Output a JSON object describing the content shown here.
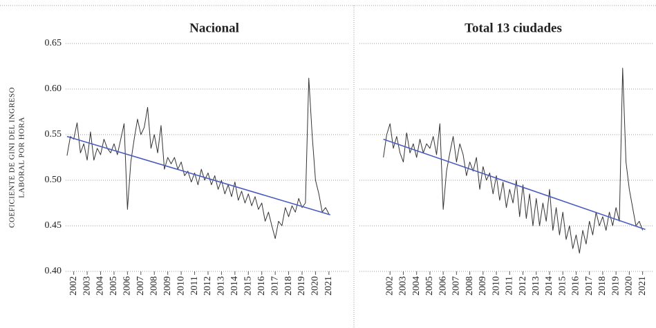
{
  "chart_data": [
    {
      "type": "line",
      "title": "Nacional",
      "ylabel": [
        "COEFICIENTE DE GINI DEL INGRESO",
        "LABORAL POR HORA"
      ],
      "xlim": [
        2001.4,
        2022.5
      ],
      "xticks": [
        2002,
        2003,
        2004,
        2005,
        2006,
        2007,
        2008,
        2009,
        2010,
        2011,
        2012,
        2013,
        2014,
        2015,
        2016,
        2017,
        2018,
        2019,
        2020,
        2021
      ],
      "ylim": [
        0.4,
        0.65
      ],
      "yticks": [
        {
          "value": 0.4,
          "label": "0.40"
        },
        0.45,
        {
          "value": 0.5,
          "label": "0.50"
        },
        0.55,
        {
          "value": 0.6,
          "label": "0.60"
        },
        0.65
      ],
      "grid": true,
      "color": "#333333",
      "x": [
        2001.5,
        2001.75,
        2002,
        2002.25,
        2002.5,
        2002.75,
        2003,
        2003.25,
        2003.5,
        2003.75,
        2004,
        2004.25,
        2004.5,
        2004.75,
        2005,
        2005.25,
        2005.5,
        2005.75,
        2006,
        2006.25,
        2006.5,
        2006.75,
        2007,
        2007.25,
        2007.5,
        2007.75,
        2008,
        2008.25,
        2008.5,
        2008.75,
        2009,
        2009.25,
        2009.5,
        2009.75,
        2010,
        2010.25,
        2010.5,
        2010.75,
        2011,
        2011.25,
        2011.5,
        2011.75,
        2012,
        2012.25,
        2012.5,
        2012.75,
        2013,
        2013.25,
        2013.5,
        2013.75,
        2014,
        2014.25,
        2014.5,
        2014.75,
        2015,
        2015.25,
        2015.5,
        2015.75,
        2016,
        2016.25,
        2016.5,
        2016.75,
        2017,
        2017.25,
        2017.5,
        2017.75,
        2018,
        2018.25,
        2018.5,
        2018.75,
        2019,
        2019.25,
        2019.5,
        2019.75,
        2020,
        2020.25,
        2020.5,
        2020.75,
        2021
      ],
      "values": [
        0.527,
        0.548,
        0.545,
        0.563,
        0.53,
        0.54,
        0.522,
        0.553,
        0.522,
        0.535,
        0.528,
        0.545,
        0.535,
        0.53,
        0.54,
        0.528,
        0.545,
        0.562,
        0.468,
        0.52,
        0.545,
        0.567,
        0.55,
        0.558,
        0.58,
        0.535,
        0.55,
        0.53,
        0.56,
        0.512,
        0.525,
        0.518,
        0.525,
        0.512,
        0.52,
        0.505,
        0.51,
        0.498,
        0.508,
        0.495,
        0.512,
        0.5,
        0.508,
        0.495,
        0.505,
        0.49,
        0.5,
        0.485,
        0.495,
        0.482,
        0.498,
        0.478,
        0.488,
        0.475,
        0.485,
        0.472,
        0.482,
        0.468,
        0.475,
        0.455,
        0.465,
        0.45,
        0.436,
        0.455,
        0.45,
        0.47,
        0.46,
        0.472,
        0.465,
        0.48,
        0.47,
        0.475,
        0.612,
        0.55,
        0.5,
        0.485,
        0.465,
        0.47,
        0.463
      ],
      "trend": {
        "x": [
          2001.5,
          2021.1
        ],
        "values": [
          0.548,
          0.462
        ],
        "color": "#4a5bbf"
      }
    },
    {
      "type": "line",
      "title": "Total 13 ciudades",
      "xlim": [
        1999.7,
        2021.8
      ],
      "xticks": [
        2002,
        2003,
        2004,
        2005,
        2006,
        2007,
        2008,
        2009,
        2010,
        2011,
        2012,
        2013,
        2014,
        2015,
        2016,
        2017,
        2018,
        2019,
        2020,
        2021
      ],
      "ylim": [
        0.4,
        0.65
      ],
      "yticks": [
        0.4,
        0.45,
        0.5,
        0.55,
        0.6,
        0.65
      ],
      "grid": true,
      "color": "#333333",
      "x": [
        2001.5,
        2001.75,
        2002,
        2002.25,
        2002.5,
        2002.75,
        2003,
        2003.25,
        2003.5,
        2003.75,
        2004,
        2004.25,
        2004.5,
        2004.75,
        2005,
        2005.25,
        2005.5,
        2005.75,
        2006,
        2006.25,
        2006.5,
        2006.75,
        2007,
        2007.25,
        2007.5,
        2007.75,
        2008,
        2008.25,
        2008.5,
        2008.75,
        2009,
        2009.25,
        2009.5,
        2009.75,
        2010,
        2010.25,
        2010.5,
        2010.75,
        2011,
        2011.25,
        2011.5,
        2011.75,
        2012,
        2012.25,
        2012.5,
        2012.75,
        2013,
        2013.25,
        2013.5,
        2013.75,
        2014,
        2014.25,
        2014.5,
        2014.75,
        2015,
        2015.25,
        2015.5,
        2015.75,
        2016,
        2016.25,
        2016.5,
        2016.75,
        2017,
        2017.25,
        2017.5,
        2017.75,
        2018,
        2018.25,
        2018.5,
        2018.75,
        2019,
        2019.25,
        2019.5,
        2019.75,
        2020,
        2020.25,
        2020.5,
        2020.75,
        2021
      ],
      "values": [
        0.525,
        0.55,
        0.562,
        0.535,
        0.548,
        0.53,
        0.52,
        0.552,
        0.53,
        0.54,
        0.525,
        0.545,
        0.53,
        0.54,
        0.535,
        0.548,
        0.528,
        0.562,
        0.468,
        0.51,
        0.53,
        0.548,
        0.52,
        0.54,
        0.528,
        0.505,
        0.52,
        0.51,
        0.525,
        0.49,
        0.515,
        0.5,
        0.508,
        0.485,
        0.505,
        0.478,
        0.498,
        0.47,
        0.49,
        0.475,
        0.5,
        0.46,
        0.495,
        0.458,
        0.485,
        0.45,
        0.48,
        0.45,
        0.475,
        0.455,
        0.49,
        0.445,
        0.47,
        0.44,
        0.465,
        0.435,
        0.45,
        0.425,
        0.44,
        0.42,
        0.445,
        0.43,
        0.455,
        0.44,
        0.465,
        0.45,
        0.46,
        0.445,
        0.465,
        0.45,
        0.47,
        0.455,
        0.623,
        0.52,
        0.49,
        0.47,
        0.45,
        0.455,
        0.445
      ],
      "trend": {
        "x": [
          2001.5,
          2021.2
        ],
        "values": [
          0.545,
          0.446
        ],
        "color": "#4a5bbf"
      }
    }
  ]
}
